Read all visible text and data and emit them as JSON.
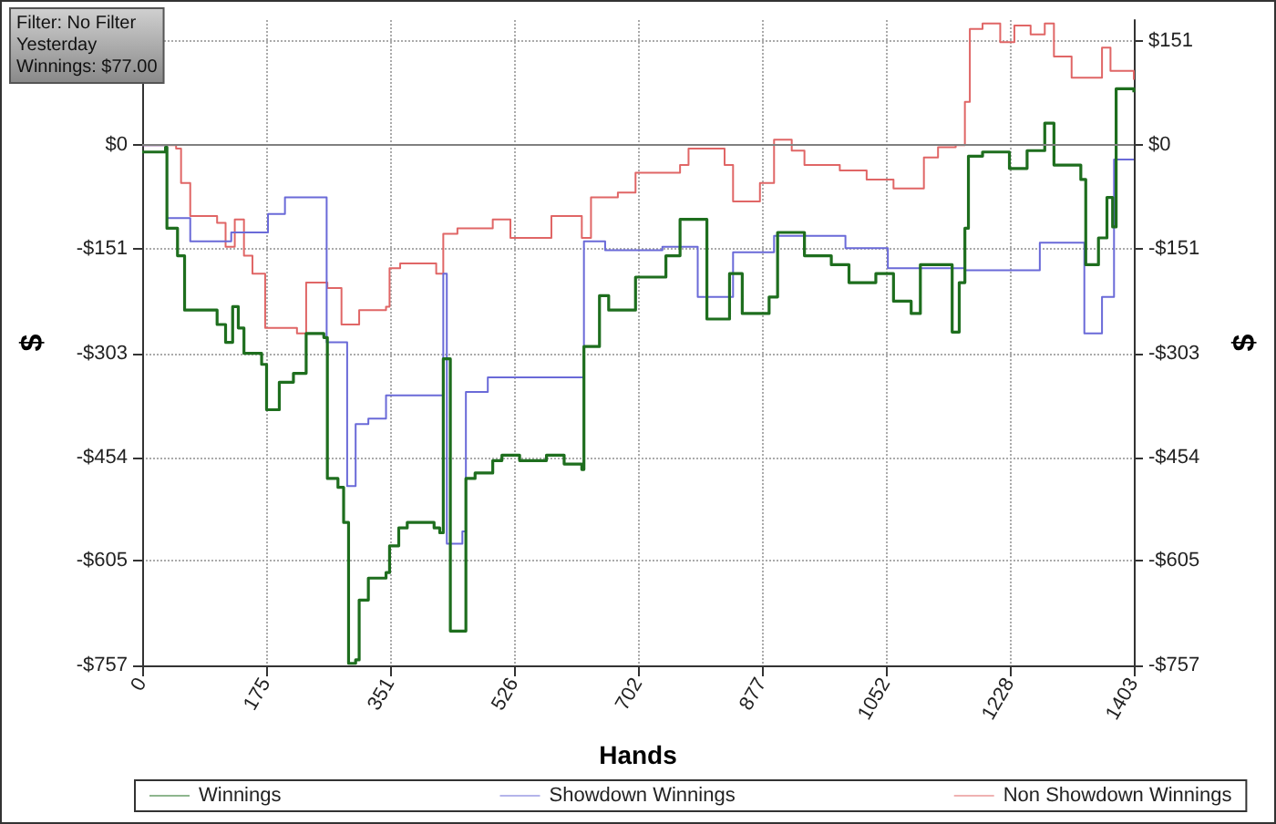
{
  "chart_data": {
    "type": "step",
    "annotations": [
      "Filter: No Filter",
      "Yesterday",
      "Winnings: $77.00"
    ],
    "xlabel": "Hands",
    "ylabel": "$",
    "y2label": "$",
    "xlim": [
      0,
      1403
    ],
    "xticks": [
      0,
      {
        "value": 175.375,
        "label": "175"
      },
      {
        "value": 350.75,
        "label": "351"
      },
      {
        "value": 526.125,
        "label": "526"
      },
      {
        "value": 701.5,
        "label": "702"
      },
      {
        "value": 876.875,
        "label": "877"
      },
      {
        "value": 1052.25,
        "label": "1052"
      },
      {
        "value": 1227.625,
        "label": "1228"
      },
      1403
    ],
    "ylim": [
      -757,
      182
    ],
    "yticks": [
      {
        "value": -757,
        "label": "-$757"
      },
      {
        "value": -605,
        "label": "-$605"
      },
      {
        "value": -454.2,
        "label": "-$454"
      },
      {
        "value": -302.8,
        "label": "-$303"
      },
      {
        "value": -151.4,
        "label": "-$151"
      },
      {
        "value": 0,
        "label": "$0"
      },
      {
        "value": 151.4,
        "label": null
      }
    ],
    "y2lim": [
      -757,
      182
    ],
    "y2ticks": [
      {
        "value": -757,
        "label": "-$757"
      },
      {
        "value": -605,
        "label": "-$605"
      },
      {
        "value": -454.2,
        "label": "-$454"
      },
      {
        "value": -302.8,
        "label": "-$303"
      },
      {
        "value": -151.4,
        "label": "-$151"
      },
      {
        "value": 0,
        "label": "$0"
      },
      {
        "value": 151.4,
        "label": "$151"
      }
    ],
    "grid": true,
    "legend": "bottom",
    "marker": "none",
    "line_style": "solid",
    "ref_lines": [
      {
        "axis": "y",
        "value": 0,
        "color": "#808080",
        "line_style": "solid"
      }
    ],
    "series": [
      {
        "name": "Winnings",
        "color": "#1e6e1e",
        "x": [
          0,
          33,
          35,
          50,
          60,
          106,
          118,
          128,
          136,
          144,
          169,
          176,
          194,
          214,
          232,
          257,
          262,
          277,
          285,
          292,
          302,
          307,
          320,
          345,
          350,
          363,
          375,
          413,
          421,
          426,
          436,
          456,
          458,
          471,
          496,
          509,
          534,
          572,
          597,
          622,
          625,
          647,
          660,
          698,
          741,
          761,
          799,
          831,
          849,
          887,
          899,
          937,
          975,
          1000,
          1038,
          1063,
          1088,
          1101,
          1139,
          1146,
          1156,
          1164,
          1169,
          1189,
          1227,
          1252,
          1277,
          1290,
          1328,
          1335,
          1353,
          1365,
          1373,
          1378,
          1403
        ],
        "values": [
          -10,
          -3,
          -121,
          -161,
          -240,
          -261,
          -287,
          -235,
          -266,
          -303,
          -319,
          -385,
          -345,
          -332,
          -274,
          -280,
          -485,
          -498,
          -549,
          -754,
          -749,
          -662,
          -630,
          -622,
          -583,
          -557,
          -549,
          -557,
          -564,
          -311,
          -707,
          -707,
          -485,
          -477,
          -459,
          -451,
          -459,
          -451,
          -464,
          -472,
          -293,
          -219,
          -240,
          -192,
          -161,
          -108,
          -253,
          -187,
          -245,
          -221,
          -127,
          -161,
          -174,
          -200,
          -187,
          -227,
          -245,
          -174,
          -174,
          -272,
          -200,
          -121,
          -16,
          -10,
          -34,
          -8,
          32,
          -29,
          -50,
          -174,
          -135,
          -76,
          -119,
          82,
          77
        ]
      },
      {
        "name": "Showdown Winnings",
        "color": "#6a6ad8",
        "x": [
          0,
          33,
          35,
          68,
          126,
          178,
          202,
          261,
          290,
          302,
          320,
          345,
          421,
          426,
          431,
          453,
          458,
          489,
          625,
          655,
          736,
          786,
          836,
          894,
          995,
          1055,
          1164,
          1270,
          1333,
          1358,
          1375,
          1403
        ],
        "values": [
          0,
          0,
          -106,
          -140,
          -127,
          -100,
          -76,
          -287,
          -496,
          -406,
          -398,
          -364,
          -364,
          -187,
          -580,
          -562,
          -359,
          -338,
          -140,
          -153,
          -148,
          -221,
          -156,
          -132,
          -150,
          -179,
          -182,
          -142,
          -274,
          -221,
          -21,
          -21
        ]
      },
      {
        "name": "Non Showdown Winnings",
        "color": "#e06666",
        "x": [
          0,
          48,
          55,
          68,
          106,
          118,
          131,
          144,
          156,
          174,
          219,
          232,
          262,
          282,
          307,
          345,
          350,
          365,
          416,
          426,
          446,
          496,
          521,
          579,
          622,
          635,
          673,
          698,
          761,
          773,
          824,
          836,
          874,
          894,
          919,
          937,
          987,
          1025,
          1063,
          1106,
          1126,
          1151,
          1164,
          1171,
          1189,
          1214,
          1234,
          1257,
          1277,
          1290,
          1315,
          1340,
          1358,
          1370,
          1403
        ],
        "values": [
          0,
          -5,
          -55,
          -103,
          -113,
          -148,
          -108,
          -161,
          -187,
          -266,
          -274,
          -200,
          -208,
          -261,
          -240,
          -235,
          -179,
          -172,
          -187,
          -129,
          -121,
          -108,
          -135,
          -103,
          -135,
          -76,
          -69,
          -40,
          -29,
          -5,
          -29,
          -82,
          -55,
          8,
          -8,
          -29,
          -37,
          -50,
          -63,
          -18,
          -3,
          0,
          63,
          169,
          177,
          150,
          174,
          161,
          177,
          129,
          98,
          98,
          142,
          108,
          95
        ]
      }
    ]
  }
}
